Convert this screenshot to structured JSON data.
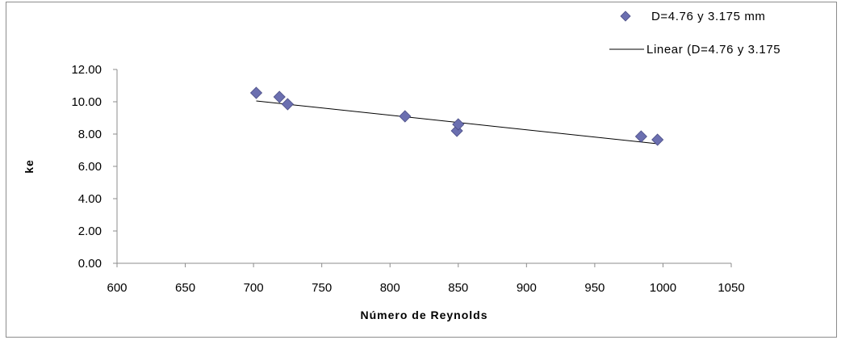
{
  "chart_data": {
    "type": "scatter",
    "xlabel": "Número de Reynolds",
    "ylabel": "ke",
    "xlim": [
      600,
      1050
    ],
    "ylim": [
      0,
      12
    ],
    "x_ticks": [
      "600",
      "650",
      "700",
      "750",
      "800",
      "850",
      "900",
      "950",
      "1000",
      "1050"
    ],
    "y_ticks": [
      "0.00",
      "2.00",
      "4.00",
      "6.00",
      "8.00",
      "10.00",
      "12.00"
    ],
    "grid": false,
    "legend_position": "top-right",
    "series": [
      {
        "name": "D=4.76 y 3.175 mm",
        "marker": "diamond",
        "color": "#6b6fb0",
        "points": [
          {
            "x": 702,
            "y": 10.55
          },
          {
            "x": 719,
            "y": 10.3
          },
          {
            "x": 725,
            "y": 9.85
          },
          {
            "x": 811,
            "y": 9.1
          },
          {
            "x": 849,
            "y": 8.2
          },
          {
            "x": 850,
            "y": 8.6
          },
          {
            "x": 984,
            "y": 7.85
          },
          {
            "x": 996,
            "y": 7.65
          }
        ]
      }
    ],
    "trendline": {
      "name": "Linear (D=4.76 y 3.175",
      "type": "linear",
      "color": "#000000",
      "x": [
        702,
        996
      ],
      "y": [
        10.05,
        7.4
      ]
    }
  }
}
